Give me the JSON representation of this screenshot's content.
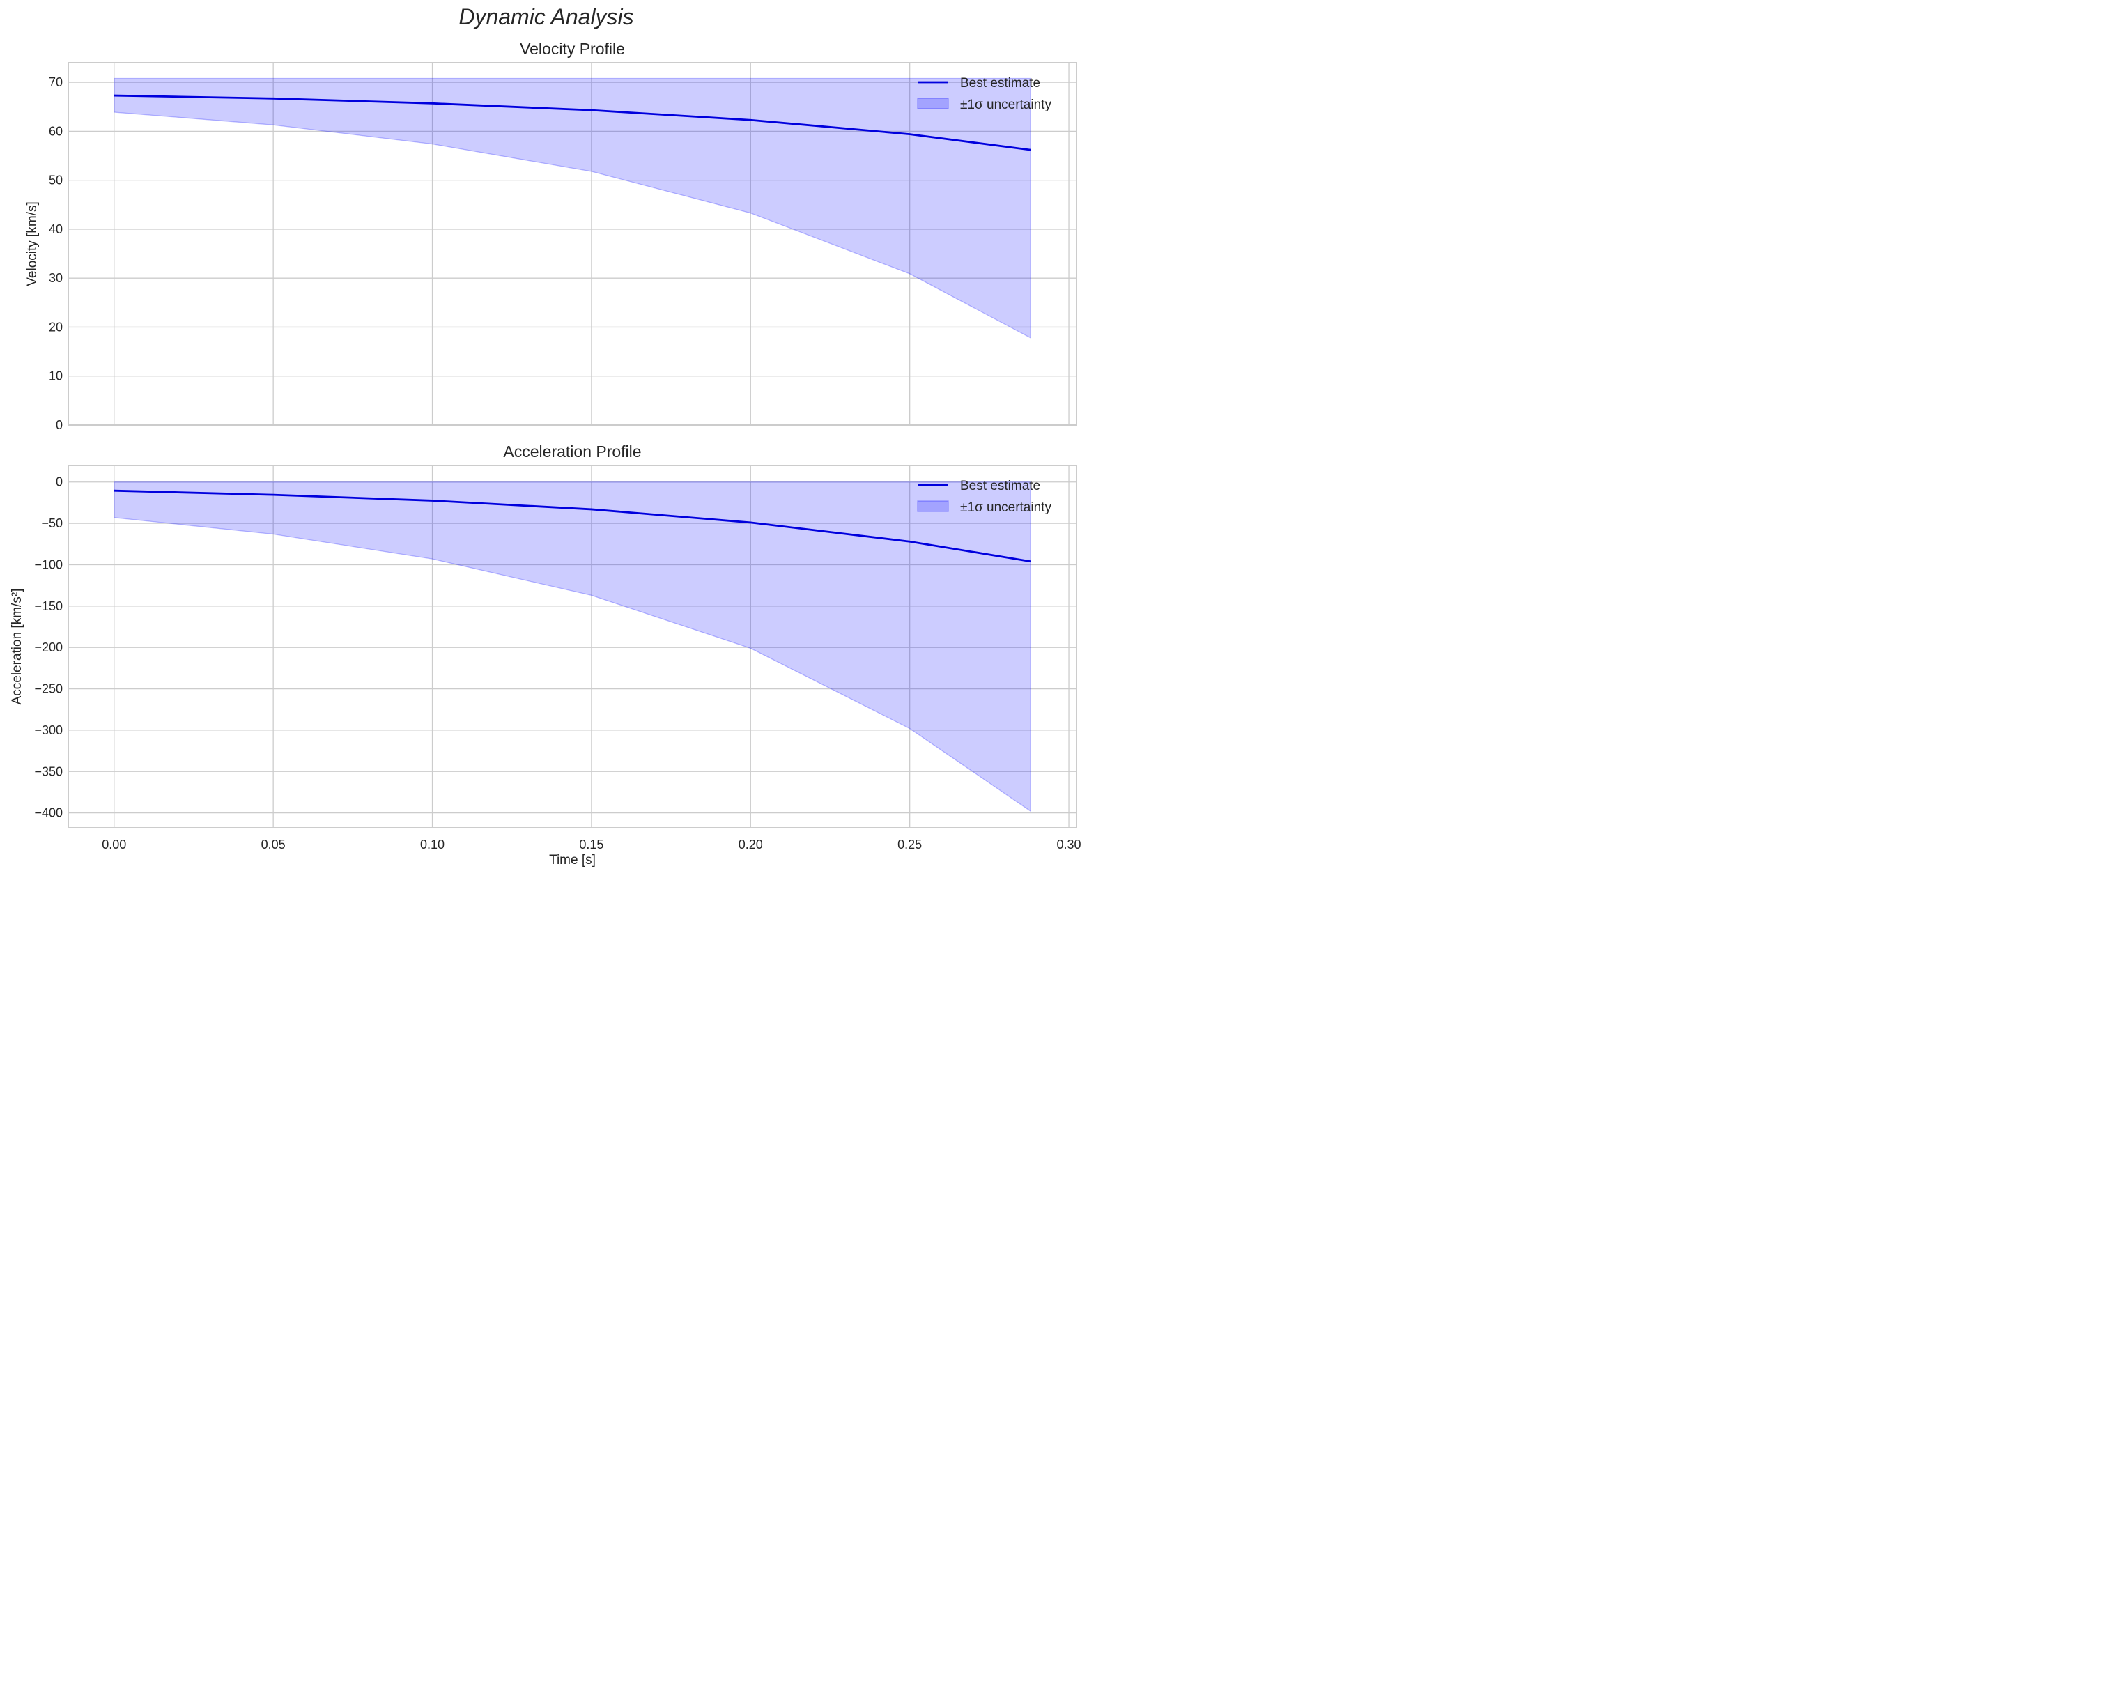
{
  "figure": {
    "suptitle": "Dynamic Analysis"
  },
  "chart_data": [
    {
      "type": "line",
      "title": "Velocity Profile",
      "xlabel": "",
      "ylabel": "Velocity [km/s]",
      "xlim": [
        -0.0144,
        0.3024
      ],
      "ylim": [
        0,
        74
      ],
      "xticks": [
        "0.00",
        "0.05",
        "0.10",
        "0.15",
        "0.20",
        "0.25",
        "0.30"
      ],
      "yticks": [
        "0",
        "10",
        "20",
        "30",
        "40",
        "50",
        "60",
        "70"
      ],
      "grid": true,
      "legend_position": "upper right",
      "x": [
        0.0,
        0.05,
        0.1,
        0.15,
        0.2,
        0.25,
        0.288
      ],
      "series": [
        {
          "name": "Best estimate",
          "values": [
            67.3,
            66.7,
            65.7,
            64.3,
            62.3,
            59.4,
            56.2
          ],
          "color": "#0000dd"
        },
        {
          "name": "±1σ uncertainty",
          "type": "band",
          "lower": [
            63.9,
            61.3,
            57.4,
            51.8,
            43.3,
            30.9,
            17.8
          ],
          "upper": [
            70.8,
            70.8,
            70.8,
            70.8,
            70.8,
            70.8,
            70.8
          ],
          "color": "#0000ff",
          "alpha": 0.2
        }
      ]
    },
    {
      "type": "line",
      "title": "Acceleration Profile",
      "xlabel": "Time [s]",
      "ylabel": "Acceleration [km/s²]",
      "xlim": [
        -0.0144,
        0.3024
      ],
      "ylim": [
        -418,
        20
      ],
      "xticks": [
        "0.00",
        "0.05",
        "0.10",
        "0.15",
        "0.20",
        "0.25",
        "0.30"
      ],
      "yticks": [
        "0",
        "−50",
        "−100",
        "−150",
        "−200",
        "−250",
        "−300",
        "−350",
        "−400"
      ],
      "grid": true,
      "legend_position": "upper right",
      "x": [
        0.0,
        0.05,
        0.1,
        0.15,
        0.2,
        0.25,
        0.288
      ],
      "series": [
        {
          "name": "Best estimate",
          "values": [
            -10.5,
            -15.5,
            -22.5,
            -33,
            -49,
            -72,
            -96
          ],
          "color": "#0000dd"
        },
        {
          "name": "±1σ uncertainty",
          "type": "band",
          "lower": [
            -43,
            -63,
            -93,
            -137,
            -201,
            -298,
            -398
          ],
          "upper": [
            0,
            0,
            0,
            0,
            0,
            0,
            0
          ],
          "color": "#0000ff",
          "alpha": 0.2
        }
      ]
    }
  ]
}
